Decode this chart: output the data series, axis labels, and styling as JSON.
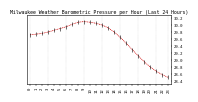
{
  "title": "Milwaukee Weather Barometric Pressure per Hour (Last 24 Hours)",
  "hours": [
    0,
    1,
    2,
    3,
    4,
    5,
    6,
    7,
    8,
    9,
    10,
    11,
    12,
    13,
    14,
    15,
    16,
    17,
    18,
    19,
    20,
    21,
    22,
    23
  ],
  "pressure": [
    29.72,
    29.74,
    29.76,
    29.8,
    29.85,
    29.9,
    29.95,
    30.02,
    30.08,
    30.1,
    30.08,
    30.05,
    30.0,
    29.92,
    29.8,
    29.65,
    29.48,
    29.3,
    29.12,
    28.95,
    28.8,
    28.68,
    28.58,
    28.5
  ],
  "line_color": "#cc0000",
  "marker_color": "#000000",
  "background_color": "#ffffff",
  "grid_color": "#bbbbbb",
  "ylim": [
    28.3,
    30.3
  ],
  "xlim": [
    -0.5,
    23.5
  ],
  "title_fontsize": 3.5,
  "tick_fontsize": 2.8,
  "ytick_values": [
    28.4,
    28.6,
    28.8,
    29.0,
    29.2,
    29.4,
    29.6,
    29.8,
    30.0,
    30.2
  ],
  "xtick_values": [
    0,
    1,
    2,
    3,
    4,
    5,
    6,
    7,
    8,
    9,
    10,
    11,
    12,
    13,
    14,
    15,
    16,
    17,
    18,
    19,
    20,
    21,
    22,
    23
  ],
  "vgrid_positions": [
    0,
    3,
    6,
    9,
    12,
    15,
    18,
    21,
    23
  ],
  "left_label": "30.2",
  "right_label": "28.5"
}
